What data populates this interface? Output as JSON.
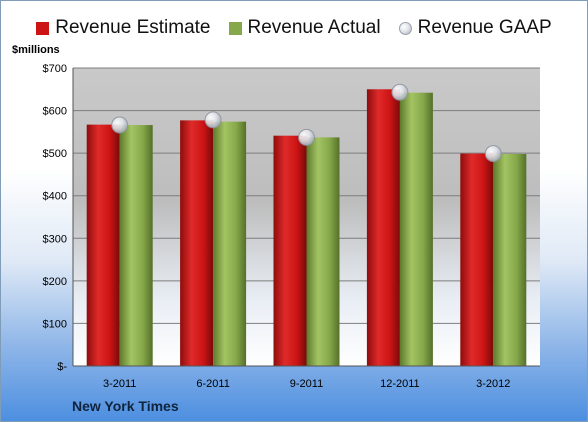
{
  "chart_data": {
    "type": "bar",
    "categories": [
      "3-2011",
      "6-2011",
      "9-2011",
      "12-2011",
      "3-2012"
    ],
    "series": [
      {
        "name": "Revenue Estimate",
        "values": [
          567,
          577,
          541,
          650,
          499
        ]
      },
      {
        "name": "Revenue Actual",
        "values": [
          566,
          574,
          537,
          642,
          498
        ]
      },
      {
        "name": "Revenue GAAP",
        "values": [
          566,
          578,
          537,
          643,
          499
        ]
      }
    ],
    "series_style": [
      "bar",
      "bar",
      "marker"
    ],
    "colors": [
      "#cc1414",
      "#86a84a",
      "#c0c4cc"
    ],
    "ylabel": "$millions",
    "ylim": [
      0,
      700
    ],
    "yticks": [
      0,
      100,
      200,
      300,
      400,
      500,
      600,
      700
    ],
    "ytick_labels": [
      "$-",
      "$100",
      "$200",
      "$300",
      "$400",
      "$500",
      "$600",
      "$700"
    ],
    "grid": true,
    "legend": "top"
  },
  "footer": {
    "title": "New York Times"
  }
}
